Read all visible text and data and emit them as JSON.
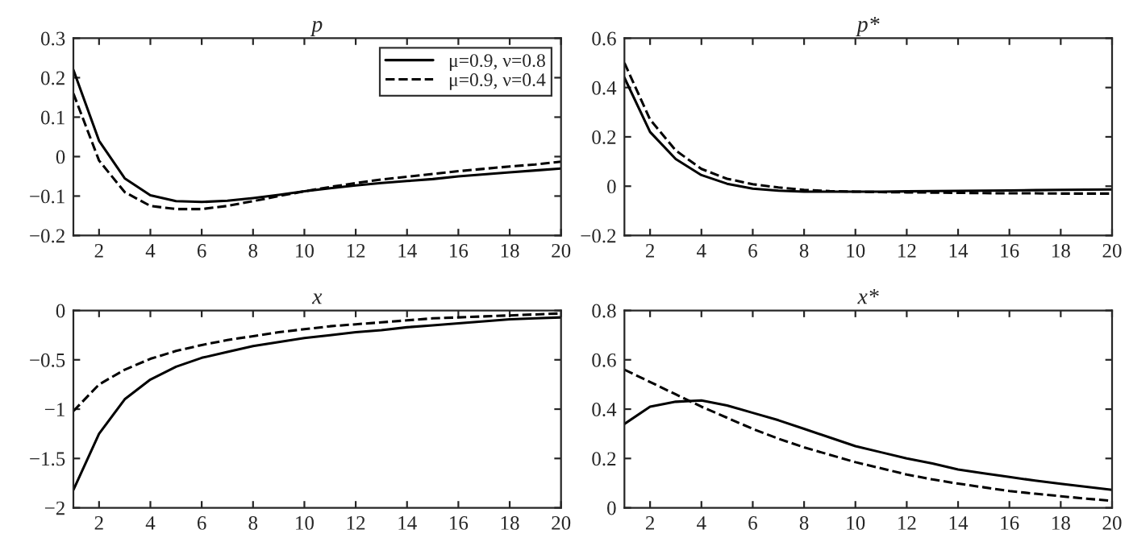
{
  "chart_data": [
    {
      "type": "line",
      "title": "p",
      "x": [
        1,
        2,
        3,
        4,
        5,
        6,
        7,
        8,
        9,
        10,
        11,
        12,
        13,
        14,
        15,
        16,
        17,
        18,
        19,
        20
      ],
      "xlim": [
        1,
        20
      ],
      "xticks": [
        2,
        4,
        6,
        8,
        10,
        12,
        14,
        16,
        18,
        20
      ],
      "ylim": [
        -0.2,
        0.3
      ],
      "yticks": [
        {
          "value": -0.2,
          "label": "−0.2"
        },
        {
          "value": -0.1,
          "label": "−0.1"
        },
        0,
        0.1,
        0.2,
        0.3
      ],
      "legend": "top right",
      "grid": false,
      "series": [
        {
          "name": "μ=0.9, ν=0.8",
          "color": "#000000",
          "line_style": "solid",
          "values": [
            0.22,
            0.04,
            -0.055,
            -0.098,
            -0.113,
            -0.115,
            -0.112,
            -0.105,
            -0.097,
            -0.088,
            -0.08,
            -0.073,
            -0.067,
            -0.062,
            -0.057,
            -0.05,
            -0.045,
            -0.04,
            -0.035,
            -0.03
          ]
        },
        {
          "name": "μ=0.9, ν=0.4",
          "color": "#000000",
          "line_style": "dashed",
          "values": [
            0.16,
            -0.01,
            -0.09,
            -0.125,
            -0.133,
            -0.133,
            -0.125,
            -0.113,
            -0.1,
            -0.088,
            -0.077,
            -0.067,
            -0.058,
            -0.051,
            -0.044,
            -0.037,
            -0.031,
            -0.025,
            -0.02,
            -0.013
          ]
        }
      ]
    },
    {
      "type": "line",
      "title": "p*",
      "x": [
        1,
        2,
        3,
        4,
        5,
        6,
        7,
        8,
        9,
        10,
        11,
        12,
        13,
        14,
        15,
        16,
        17,
        18,
        19,
        20
      ],
      "xlim": [
        1,
        20
      ],
      "xticks": [
        2,
        4,
        6,
        8,
        10,
        12,
        14,
        16,
        18,
        20
      ],
      "ylim": [
        -0.2,
        0.6
      ],
      "yticks": [
        {
          "value": -0.2,
          "label": "−0.2"
        },
        0,
        0.2,
        0.4,
        0.6
      ],
      "grid": false,
      "series": [
        {
          "color": "#000000",
          "line_style": "solid",
          "values": [
            0.44,
            0.22,
            0.11,
            0.045,
            0.01,
            -0.01,
            -0.018,
            -0.022,
            -0.022,
            -0.022,
            -0.022,
            -0.021,
            -0.02,
            -0.019,
            -0.018,
            -0.017,
            -0.016,
            -0.015,
            -0.014,
            -0.013
          ]
        },
        {
          "color": "#000000",
          "line_style": "dashed",
          "values": [
            0.5,
            0.27,
            0.145,
            0.07,
            0.03,
            0.008,
            -0.005,
            -0.015,
            -0.02,
            -0.022,
            -0.024,
            -0.025,
            -0.026,
            -0.027,
            -0.028,
            -0.029,
            -0.029,
            -0.03,
            -0.03,
            -0.03
          ]
        }
      ]
    },
    {
      "type": "line",
      "title": "x",
      "x": [
        1,
        2,
        3,
        4,
        5,
        6,
        7,
        8,
        9,
        10,
        11,
        12,
        13,
        14,
        15,
        16,
        17,
        18,
        19,
        20
      ],
      "xlim": [
        1,
        20
      ],
      "xticks": [
        2,
        4,
        6,
        8,
        10,
        12,
        14,
        16,
        18,
        20
      ],
      "ylim": [
        -2,
        0
      ],
      "yticks": [
        {
          "value": -2,
          "label": "−2"
        },
        {
          "value": -1.5,
          "label": "−1.5"
        },
        {
          "value": -1,
          "label": "−1"
        },
        {
          "value": -0.5,
          "label": "−0.5"
        },
        0
      ],
      "grid": false,
      "series": [
        {
          "color": "#000000",
          "line_style": "solid",
          "values": [
            -1.82,
            -1.25,
            -0.9,
            -0.7,
            -0.57,
            -0.48,
            -0.42,
            -0.36,
            -0.32,
            -0.28,
            -0.25,
            -0.22,
            -0.2,
            -0.17,
            -0.15,
            -0.13,
            -0.11,
            -0.09,
            -0.08,
            -0.07
          ]
        },
        {
          "color": "#000000",
          "line_style": "dashed",
          "values": [
            -1.02,
            -0.75,
            -0.6,
            -0.49,
            -0.41,
            -0.35,
            -0.3,
            -0.26,
            -0.22,
            -0.19,
            -0.16,
            -0.14,
            -0.12,
            -0.1,
            -0.08,
            -0.07,
            -0.06,
            -0.05,
            -0.04,
            -0.03
          ]
        }
      ]
    },
    {
      "type": "line",
      "title": "x*",
      "x": [
        1,
        2,
        3,
        4,
        5,
        6,
        7,
        8,
        9,
        10,
        11,
        12,
        13,
        14,
        15,
        16,
        17,
        18,
        19,
        20
      ],
      "xlim": [
        1,
        20
      ],
      "xticks": [
        2,
        4,
        6,
        8,
        10,
        12,
        14,
        16,
        18,
        20
      ],
      "ylim": [
        0,
        0.8
      ],
      "yticks": [
        0,
        0.2,
        0.4,
        0.6,
        0.8
      ],
      "grid": false,
      "series": [
        {
          "color": "#000000",
          "line_style": "solid",
          "values": [
            0.34,
            0.41,
            0.43,
            0.435,
            0.415,
            0.385,
            0.355,
            0.32,
            0.285,
            0.25,
            0.225,
            0.2,
            0.18,
            0.155,
            0.14,
            0.125,
            0.11,
            0.097,
            0.085,
            0.073
          ]
        },
        {
          "color": "#000000",
          "line_style": "dashed",
          "values": [
            0.56,
            0.51,
            0.46,
            0.41,
            0.365,
            0.32,
            0.28,
            0.245,
            0.215,
            0.185,
            0.16,
            0.135,
            0.115,
            0.098,
            0.083,
            0.068,
            0.057,
            0.047,
            0.037,
            0.028
          ]
        }
      ]
    }
  ]
}
